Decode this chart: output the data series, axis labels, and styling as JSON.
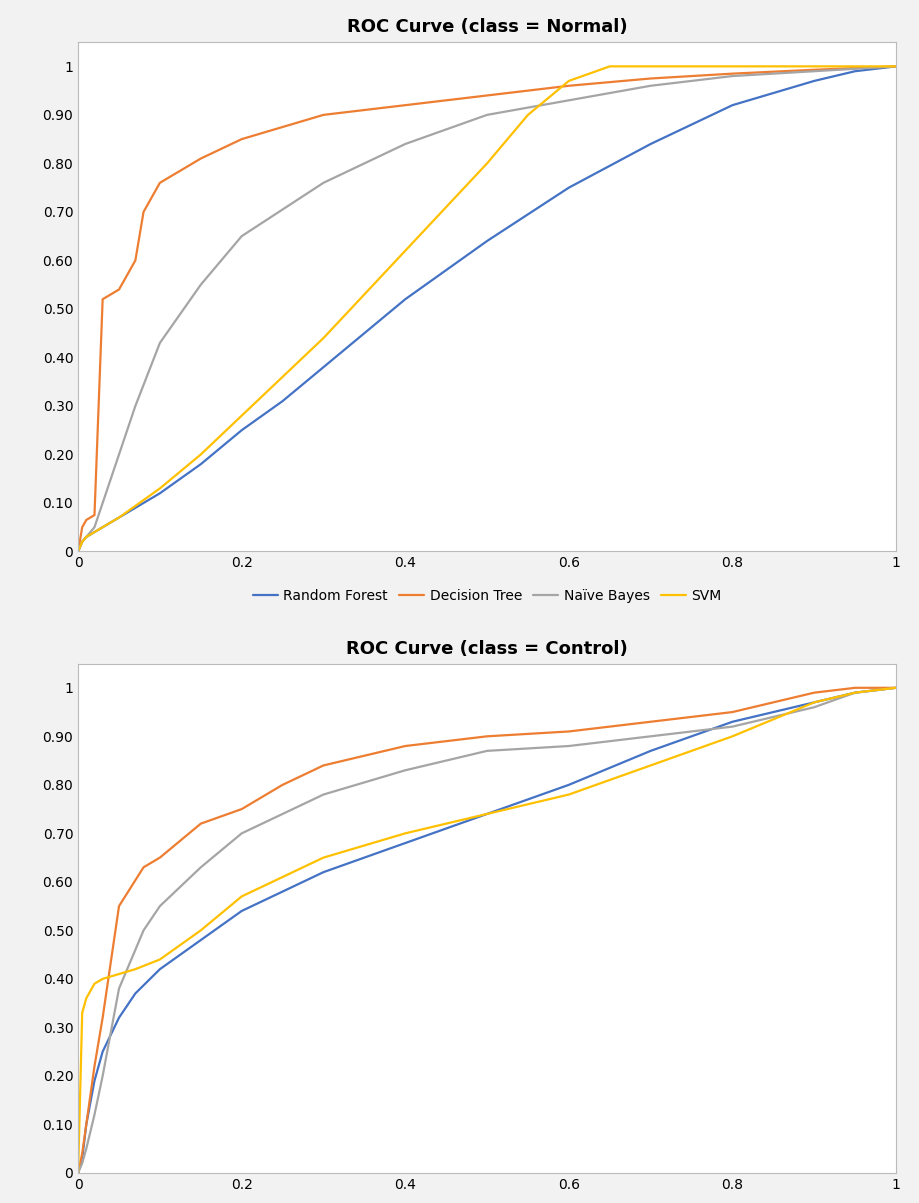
{
  "title1": "ROC Curve (class = Normal)",
  "title2": "ROC Curve (class = Control)",
  "legend_labels": [
    "Random Forest",
    "Decision Tree",
    "Naïve Bayes",
    "SVM"
  ],
  "colors": {
    "Random Forest": "#4472C4",
    "Decision Tree": "#ED7D31",
    "Naive Bayes": "#A5A5A5",
    "SVM": "#FFC000"
  },
  "normal": {
    "Random Forest": {
      "x": [
        0,
        0.005,
        0.01,
        0.02,
        0.03,
        0.05,
        0.07,
        0.1,
        0.15,
        0.2,
        0.25,
        0.3,
        0.35,
        0.4,
        0.5,
        0.6,
        0.7,
        0.8,
        0.9,
        0.95,
        1.0
      ],
      "y": [
        0,
        0.02,
        0.03,
        0.04,
        0.05,
        0.07,
        0.09,
        0.12,
        0.18,
        0.25,
        0.31,
        0.38,
        0.45,
        0.52,
        0.64,
        0.75,
        0.84,
        0.92,
        0.97,
        0.99,
        1.0
      ]
    },
    "Decision Tree": {
      "x": [
        0,
        0.005,
        0.01,
        0.015,
        0.02,
        0.03,
        0.05,
        0.07,
        0.08,
        0.1,
        0.15,
        0.2,
        0.3,
        0.4,
        0.5,
        0.6,
        0.7,
        0.8,
        0.9,
        1.0
      ],
      "y": [
        0,
        0.05,
        0.065,
        0.07,
        0.075,
        0.52,
        0.54,
        0.6,
        0.7,
        0.76,
        0.81,
        0.85,
        0.9,
        0.92,
        0.94,
        0.96,
        0.975,
        0.985,
        0.993,
        1.0
      ]
    },
    "Naive Bayes": {
      "x": [
        0,
        0.005,
        0.01,
        0.02,
        0.03,
        0.05,
        0.07,
        0.1,
        0.15,
        0.2,
        0.3,
        0.4,
        0.5,
        0.6,
        0.7,
        0.8,
        0.9,
        1.0
      ],
      "y": [
        0,
        0.02,
        0.03,
        0.05,
        0.1,
        0.2,
        0.3,
        0.43,
        0.55,
        0.65,
        0.76,
        0.84,
        0.9,
        0.93,
        0.96,
        0.98,
        0.99,
        1.0
      ]
    },
    "SVM": {
      "x": [
        0,
        0.005,
        0.01,
        0.02,
        0.05,
        0.1,
        0.15,
        0.2,
        0.25,
        0.3,
        0.35,
        0.4,
        0.5,
        0.55,
        0.6,
        0.65,
        1.0
      ],
      "y": [
        0,
        0.02,
        0.03,
        0.04,
        0.07,
        0.13,
        0.2,
        0.28,
        0.36,
        0.44,
        0.53,
        0.62,
        0.8,
        0.9,
        0.97,
        1.0,
        1.0
      ]
    }
  },
  "control": {
    "Random Forest": {
      "x": [
        0,
        0.005,
        0.01,
        0.02,
        0.03,
        0.05,
        0.07,
        0.1,
        0.15,
        0.2,
        0.3,
        0.4,
        0.5,
        0.6,
        0.7,
        0.8,
        0.9,
        0.95,
        1.0
      ],
      "y": [
        0,
        0.03,
        0.1,
        0.19,
        0.25,
        0.32,
        0.37,
        0.42,
        0.48,
        0.54,
        0.62,
        0.68,
        0.74,
        0.8,
        0.87,
        0.93,
        0.97,
        0.99,
        1.0
      ]
    },
    "Decision Tree": {
      "x": [
        0,
        0.005,
        0.01,
        0.02,
        0.03,
        0.05,
        0.08,
        0.1,
        0.15,
        0.2,
        0.25,
        0.3,
        0.35,
        0.4,
        0.5,
        0.6,
        0.7,
        0.8,
        0.9,
        0.95,
        1.0
      ],
      "y": [
        0,
        0.04,
        0.1,
        0.22,
        0.32,
        0.55,
        0.63,
        0.65,
        0.72,
        0.75,
        0.8,
        0.84,
        0.86,
        0.88,
        0.9,
        0.91,
        0.93,
        0.95,
        0.99,
        1.0,
        1.0
      ]
    },
    "Naive Bayes": {
      "x": [
        0,
        0.005,
        0.01,
        0.02,
        0.03,
        0.05,
        0.08,
        0.1,
        0.15,
        0.2,
        0.3,
        0.4,
        0.5,
        0.6,
        0.7,
        0.8,
        0.9,
        0.95,
        1.0
      ],
      "y": [
        0,
        0.02,
        0.05,
        0.12,
        0.2,
        0.38,
        0.5,
        0.55,
        0.63,
        0.7,
        0.78,
        0.83,
        0.87,
        0.88,
        0.9,
        0.92,
        0.96,
        0.99,
        1.0
      ]
    },
    "SVM": {
      "x": [
        0,
        0.005,
        0.01,
        0.02,
        0.03,
        0.05,
        0.07,
        0.1,
        0.15,
        0.2,
        0.3,
        0.4,
        0.5,
        0.6,
        0.7,
        0.8,
        0.9,
        0.95,
        1.0
      ],
      "y": [
        0,
        0.33,
        0.36,
        0.39,
        0.4,
        0.41,
        0.42,
        0.44,
        0.5,
        0.57,
        0.65,
        0.7,
        0.74,
        0.78,
        0.84,
        0.9,
        0.97,
        0.99,
        1.0
      ]
    }
  },
  "xticks": [
    0,
    0.2,
    0.4,
    0.6,
    0.8,
    1
  ],
  "yticks": [
    0,
    0.1,
    0.2,
    0.3,
    0.4,
    0.5,
    0.6,
    0.7,
    0.8,
    0.9,
    1
  ],
  "ytick_labels": [
    "0",
    "0.10",
    "0.20",
    "0.30",
    "0.40",
    "0.50",
    "0.60",
    "0.70",
    "0.80",
    "0.90",
    "1"
  ],
  "xtick_labels": [
    "0",
    "0.2",
    "0.4",
    "0.6",
    "0.8",
    "1"
  ],
  "background_color": "#FFFFFF",
  "outer_bg": "#F2F2F2",
  "title_fontsize": 13,
  "tick_fontsize": 10,
  "legend_fontsize": 10,
  "line_width": 1.6
}
